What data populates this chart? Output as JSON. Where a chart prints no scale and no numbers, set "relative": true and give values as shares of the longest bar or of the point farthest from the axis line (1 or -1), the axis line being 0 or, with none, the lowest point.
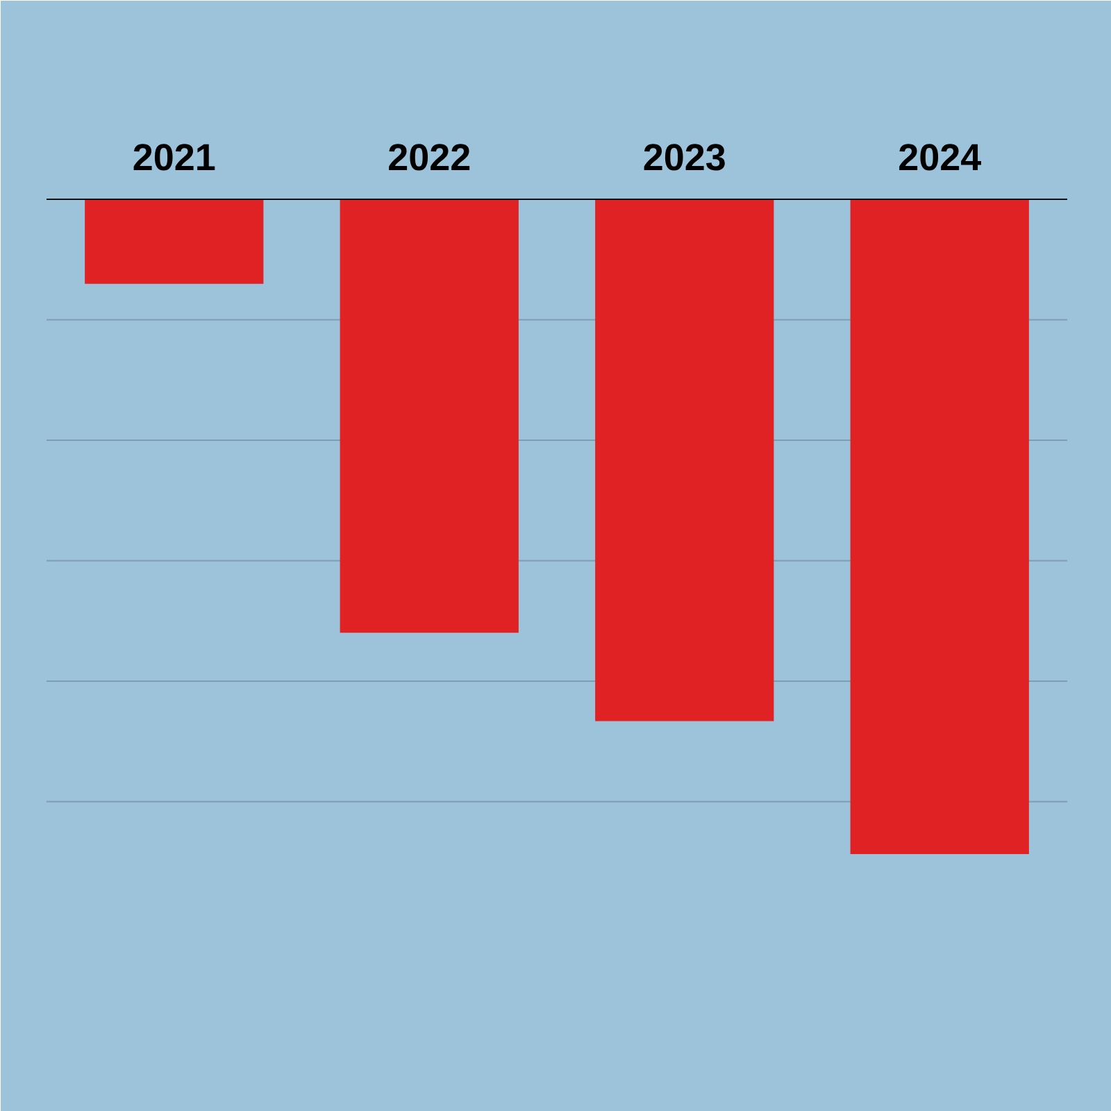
{
  "chart_data": {
    "type": "bar",
    "categories": [
      "2021",
      "2022",
      "2023",
      "2024"
    ],
    "values": [
      -0.129,
      -0.662,
      -0.797,
      -1
    ],
    "color": "#e02224",
    "relative": true,
    "ref_lines": [
      {
        "axis": "y",
        "value": -0.184,
        "color": "#7f9db2"
      },
      {
        "axis": "y",
        "value": -0.368,
        "color": "#7f9db2"
      },
      {
        "axis": "y",
        "value": -0.552,
        "color": "#7f9db2"
      },
      {
        "axis": "y",
        "value": -0.736,
        "color": "#7f9db2"
      },
      {
        "axis": "y",
        "value": -0.92,
        "color": "#7f9db2"
      }
    ],
    "tick_labels": "x"
  }
}
